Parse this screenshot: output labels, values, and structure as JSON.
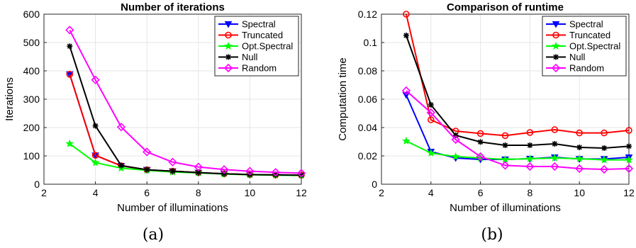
{
  "chart_data": [
    {
      "type": "line",
      "title": "Number of iterations",
      "xlabel": "Number of illuminations",
      "ylabel": "Iterations",
      "xlim": [
        2,
        12
      ],
      "ylim": [
        0,
        600
      ],
      "xticks": [
        2,
        4,
        6,
        8,
        10,
        12
      ],
      "yticks": [
        0,
        100,
        200,
        300,
        400,
        500,
        600
      ],
      "ytick_labels": [
        "0",
        "100",
        "200",
        "300",
        "400",
        "500",
        "600"
      ],
      "grid": true,
      "legend_position": "top-right",
      "caption": "(a)",
      "x": [
        3,
        4,
        5,
        6,
        7,
        8,
        9,
        10,
        11,
        12
      ],
      "series": [
        {
          "name": "Spectral",
          "color": "#0000ff",
          "marker": "triangle-down",
          "values": [
            388,
            102,
            65,
            51,
            46,
            41,
            37,
            34,
            33,
            32
          ]
        },
        {
          "name": "Truncated",
          "color": "#ff0000",
          "marker": "circle",
          "values": [
            388,
            102,
            65,
            51,
            46,
            41,
            37,
            34,
            33,
            32
          ]
        },
        {
          "name": "Opt.Spectral",
          "color": "#00ff00",
          "marker": "star",
          "values": [
            143,
            76,
            57,
            49,
            43,
            40,
            36,
            33,
            32,
            31
          ]
        },
        {
          "name": "Null",
          "color": "#000000",
          "marker": "asterisk",
          "values": [
            487,
            206,
            66,
            51,
            46,
            41,
            37,
            34,
            33,
            32
          ]
        },
        {
          "name": "Random",
          "color": "#ff00ff",
          "marker": "diamond",
          "values": [
            544,
            368,
            202,
            114,
            78,
            61,
            52,
            46,
            42,
            39
          ]
        }
      ]
    },
    {
      "type": "line",
      "title": "Comparison of runtime",
      "xlabel": "Number of illuminations",
      "ylabel": "Computation time",
      "xlim": [
        2,
        12
      ],
      "ylim": [
        0,
        0.12
      ],
      "xticks": [
        2,
        4,
        6,
        8,
        10,
        12
      ],
      "yticks": [
        0,
        0.02,
        0.04,
        0.06,
        0.08,
        0.1,
        0.12
      ],
      "ytick_labels": [
        "0",
        "0.02",
        "0.04",
        "0.06",
        "0.08",
        "0.1",
        "0.12"
      ],
      "grid": true,
      "legend_position": "top-right",
      "caption": "(b)",
      "x": [
        3,
        4,
        5,
        6,
        7,
        8,
        9,
        10,
        11,
        12
      ],
      "series": [
        {
          "name": "Spectral",
          "color": "#0000ff",
          "marker": "triangle-down",
          "values": [
            0.063,
            0.023,
            0.0185,
            0.0175,
            0.0175,
            0.018,
            0.019,
            0.0178,
            0.0178,
            0.019
          ]
        },
        {
          "name": "Truncated",
          "color": "#ff0000",
          "marker": "circle",
          "values": [
            0.12,
            0.0455,
            0.0375,
            0.0358,
            0.0343,
            0.0365,
            0.0385,
            0.0362,
            0.0362,
            0.038
          ]
        },
        {
          "name": "Opt.Spectral",
          "color": "#00ff00",
          "marker": "star",
          "values": [
            0.0305,
            0.022,
            0.0195,
            0.0185,
            0.0175,
            0.018,
            0.0185,
            0.018,
            0.0172,
            0.0172
          ]
        },
        {
          "name": "Null",
          "color": "#000000",
          "marker": "asterisk",
          "values": [
            0.105,
            0.056,
            0.0345,
            0.0298,
            0.0275,
            0.0275,
            0.0285,
            0.026,
            0.0255,
            0.0268
          ]
        },
        {
          "name": "Random",
          "color": "#ff00ff",
          "marker": "diamond",
          "values": [
            0.066,
            0.0505,
            0.0315,
            0.0195,
            0.0133,
            0.0125,
            0.0125,
            0.011,
            0.0105,
            0.011
          ]
        }
      ]
    }
  ]
}
